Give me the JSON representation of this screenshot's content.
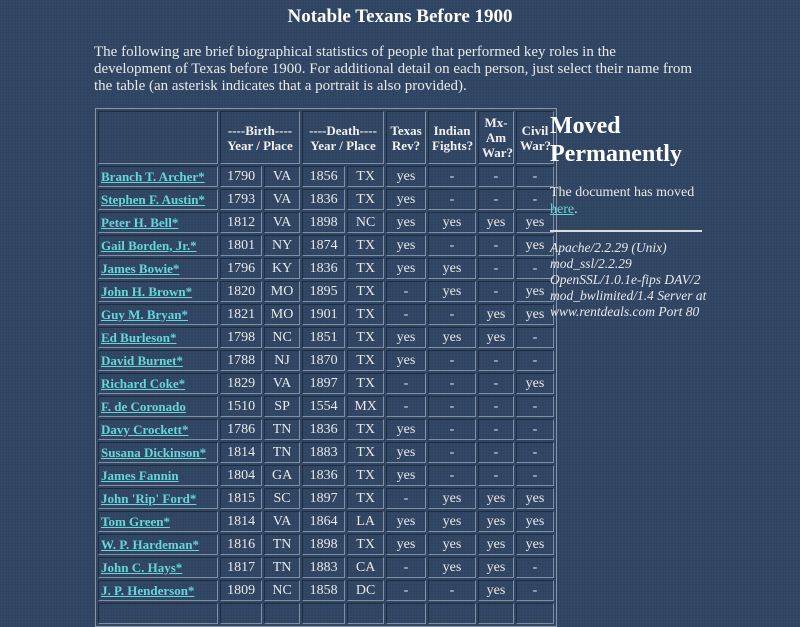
{
  "title": "Notable Texans Before 1900",
  "intro": "The following are brief biographical statistics of people that performed key roles in the development of Texas before 1900. For additional detail on each person, just select their name from the table (an asterisk indicates that a portrait is also provided).",
  "table": {
    "headers": [
      "",
      "----Birth---- Year / Place",
      "----Death---- Year / Place",
      "Texas Rev?",
      "Indian Fights?",
      "Mx-Am War?",
      "Civil War?"
    ],
    "rows": [
      [
        "Branch T. Archer*",
        "1790",
        "VA",
        "1856",
        "TX",
        "yes",
        "-",
        "-",
        "-"
      ],
      [
        "Stephen F. Austin*",
        "1793",
        "VA",
        "1836",
        "TX",
        "yes",
        "-",
        "-",
        "-"
      ],
      [
        "Peter H. Bell*",
        "1812",
        "VA",
        "1898",
        "NC",
        "yes",
        "yes",
        "yes",
        "yes"
      ],
      [
        "Gail Borden, Jr.*",
        "1801",
        "NY",
        "1874",
        "TX",
        "yes",
        "-",
        "-",
        "yes"
      ],
      [
        "James Bowie*",
        "1796",
        "KY",
        "1836",
        "TX",
        "yes",
        "yes",
        "-",
        "-"
      ],
      [
        "John H. Brown*",
        "1820",
        "MO",
        "1895",
        "TX",
        "-",
        "yes",
        "-",
        "yes"
      ],
      [
        "Guy M. Bryan*",
        "1821",
        "MO",
        "1901",
        "TX",
        "-",
        "-",
        "yes",
        "yes"
      ],
      [
        "Ed Burleson*",
        "1798",
        "NC",
        "1851",
        "TX",
        "yes",
        "yes",
        "yes",
        "-"
      ],
      [
        "David Burnet*",
        "1788",
        "NJ",
        "1870",
        "TX",
        "yes",
        "-",
        "-",
        "-"
      ],
      [
        "Richard Coke*",
        "1829",
        "VA",
        "1897",
        "TX",
        "-",
        "-",
        "-",
        "yes"
      ],
      [
        "F. de Coronado",
        "1510",
        "SP",
        "1554",
        "MX",
        "-",
        "-",
        "-",
        "-"
      ],
      [
        "Davy Crockett*",
        "1786",
        "TN",
        "1836",
        "TX",
        "yes",
        "-",
        "-",
        "-"
      ],
      [
        "Susana Dickinson*",
        "1814",
        "TN",
        "1883",
        "TX",
        "yes",
        "-",
        "-",
        "-"
      ],
      [
        "James Fannin",
        "1804",
        "GA",
        "1836",
        "TX",
        "yes",
        "-",
        "-",
        "-"
      ],
      [
        "John 'Rip' Ford*",
        "1815",
        "SC",
        "1897",
        "TX",
        "-",
        "yes",
        "yes",
        "yes"
      ],
      [
        "Tom Green*",
        "1814",
        "VA",
        "1864",
        "LA",
        "yes",
        "yes",
        "yes",
        "yes"
      ],
      [
        "W. P. Hardeman*",
        "1816",
        "TN",
        "1898",
        "TX",
        "yes",
        "yes",
        "yes",
        "yes"
      ],
      [
        "John C. Hays*",
        "1817",
        "TN",
        "1883",
        "CA",
        "-",
        "yes",
        "yes",
        "-"
      ],
      [
        "J. P. Henderson*",
        "1809",
        "NC",
        "1858",
        "DC",
        "-",
        "-",
        "yes",
        "-"
      ],
      [
        "",
        "",
        "",
        "",
        "",
        "",
        "",
        "",
        ""
      ]
    ]
  },
  "side": {
    "heading": "Moved Permanently",
    "text": "The document has moved ",
    "link": "here",
    "period": ".",
    "address": "Apache/2.2.29 (Unix) mod_ssl/2.2.29 OpenSSL/1.0.1e-fips DAV/2 mod_bwlimited/1.4 Server at www.rentdeals.com Port 80"
  },
  "colors": {
    "background": "#2f4462",
    "link": "#66d6d6",
    "text": "#e8e8e8"
  }
}
